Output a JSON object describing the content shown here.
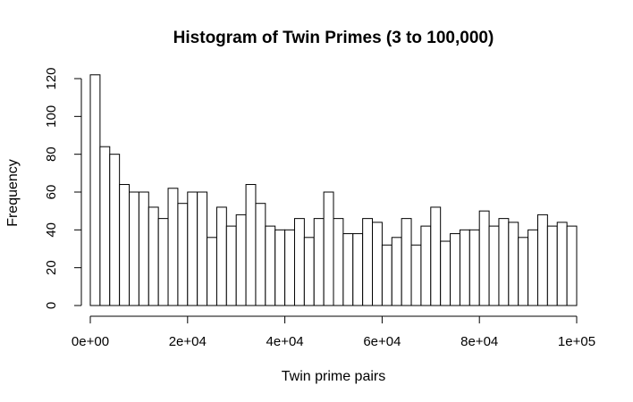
{
  "chart_data": {
    "type": "bar",
    "title": "Histogram of Twin Primes (3 to 100,000)",
    "xlabel": "Twin prime pairs",
    "ylabel": "Frequency",
    "xlim": [
      0,
      100000
    ],
    "ylim": [
      0,
      120
    ],
    "grid": false,
    "legend": "none",
    "bin_width": 2000,
    "bin_start": 0,
    "x_ticks": [
      0,
      20000,
      40000,
      60000,
      80000,
      100000
    ],
    "x_tick_labels": [
      "0e+00",
      "2e+04",
      "4e+04",
      "6e+04",
      "8e+04",
      "1e+05"
    ],
    "y_ticks": [
      0,
      20,
      40,
      60,
      80,
      100,
      120
    ],
    "y_tick_labels": [
      "0",
      "20",
      "40",
      "60",
      "80",
      "100",
      "120"
    ],
    "values": [
      122,
      84,
      80,
      64,
      60,
      60,
      52,
      46,
      62,
      54,
      60,
      60,
      36,
      52,
      42,
      48,
      64,
      54,
      42,
      40,
      40,
      46,
      36,
      46,
      60,
      46,
      38,
      38,
      46,
      44,
      32,
      36,
      46,
      32,
      42,
      52,
      34,
      38,
      40,
      40,
      50,
      42,
      46,
      44,
      36,
      40,
      48,
      42,
      44,
      42
    ],
    "bar_fill": "#ffffff",
    "bar_stroke": "#000000"
  }
}
